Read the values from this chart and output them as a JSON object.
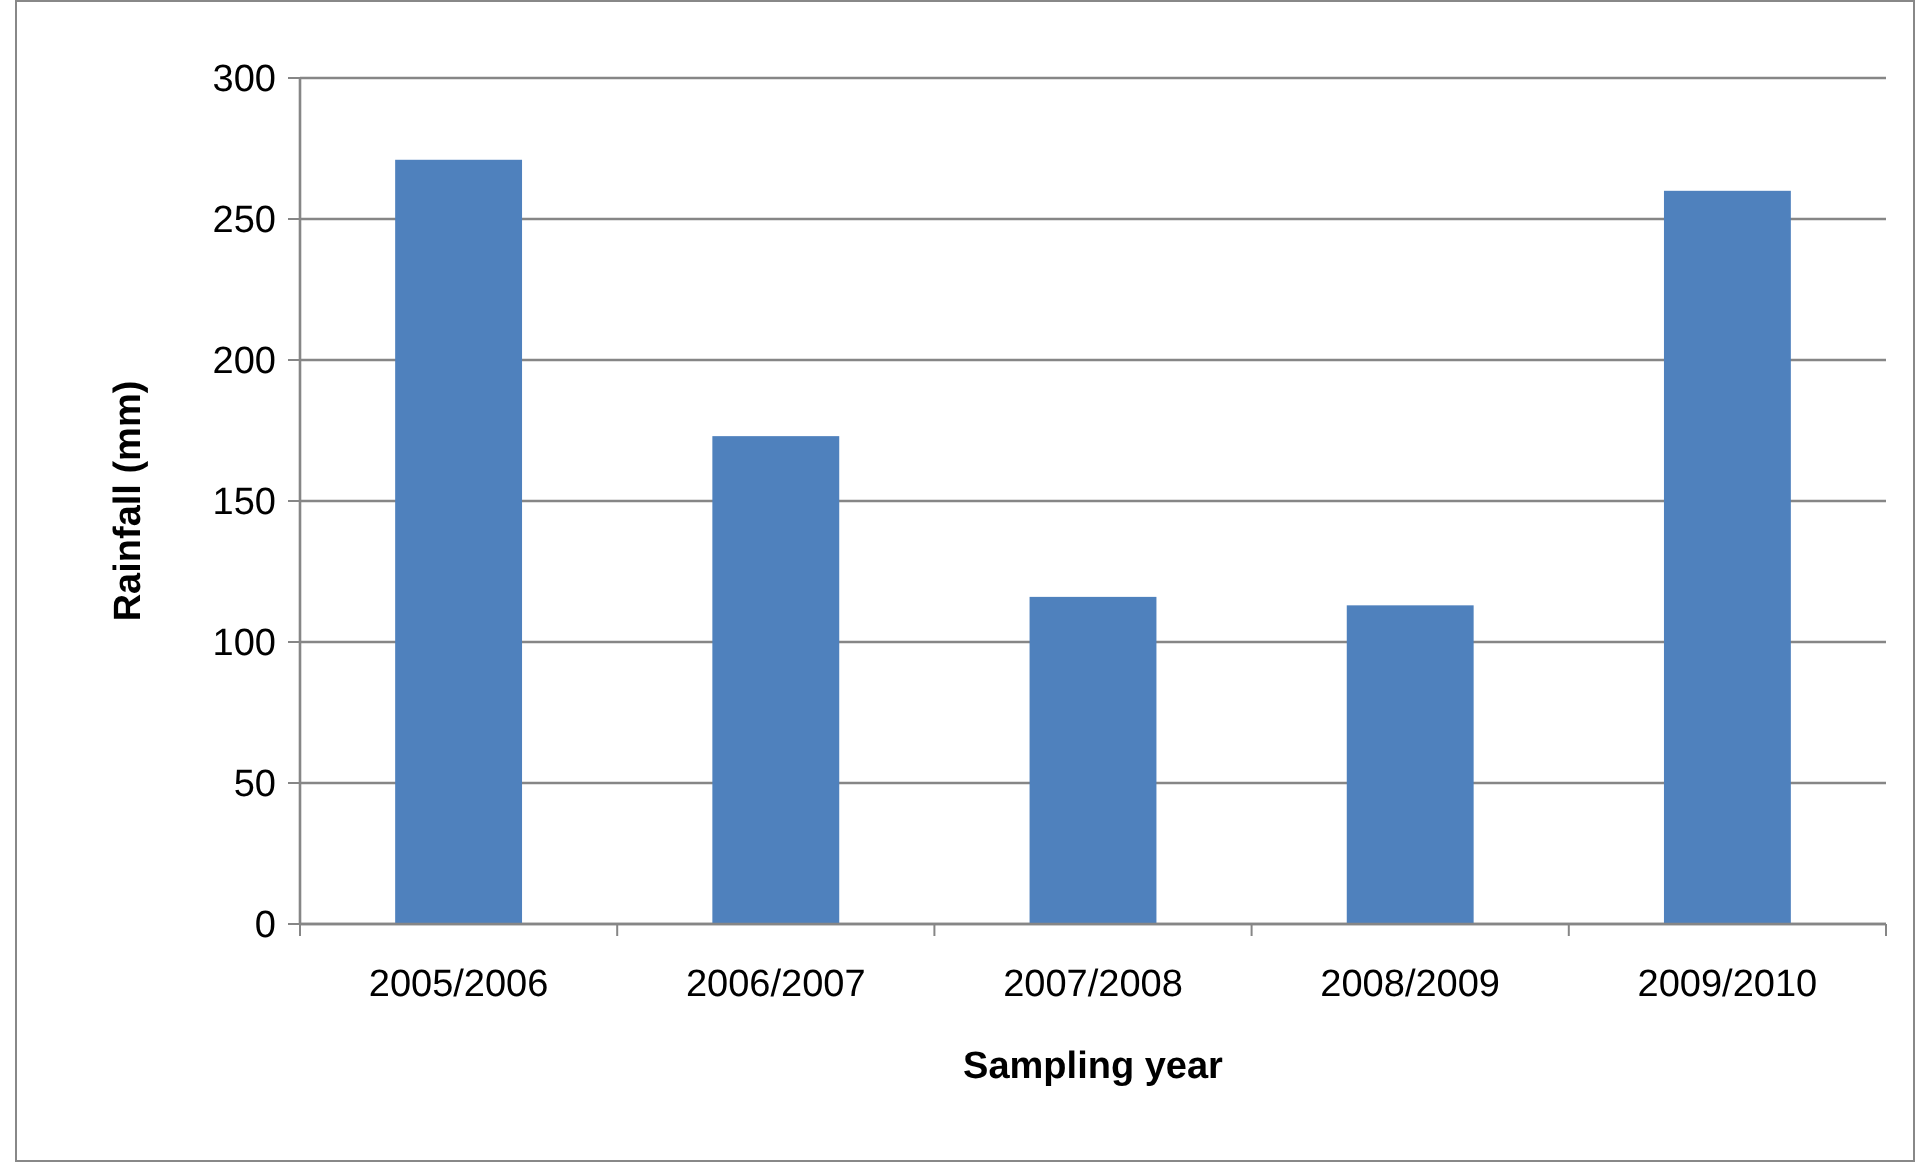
{
  "chart_data": {
    "type": "bar",
    "xlabel": "Sampling year",
    "ylabel": "Rainfall (mm)",
    "categories": [
      "2005/2006",
      "2006/2007",
      "2007/2008",
      "2008/2009",
      "2009/2010"
    ],
    "values": [
      271,
      173,
      116,
      113,
      260
    ],
    "color": "#4f81bd",
    "ylim": [
      0,
      300
    ],
    "yticks": [
      0,
      50,
      100,
      150,
      200,
      250,
      300
    ],
    "grid": "y"
  }
}
